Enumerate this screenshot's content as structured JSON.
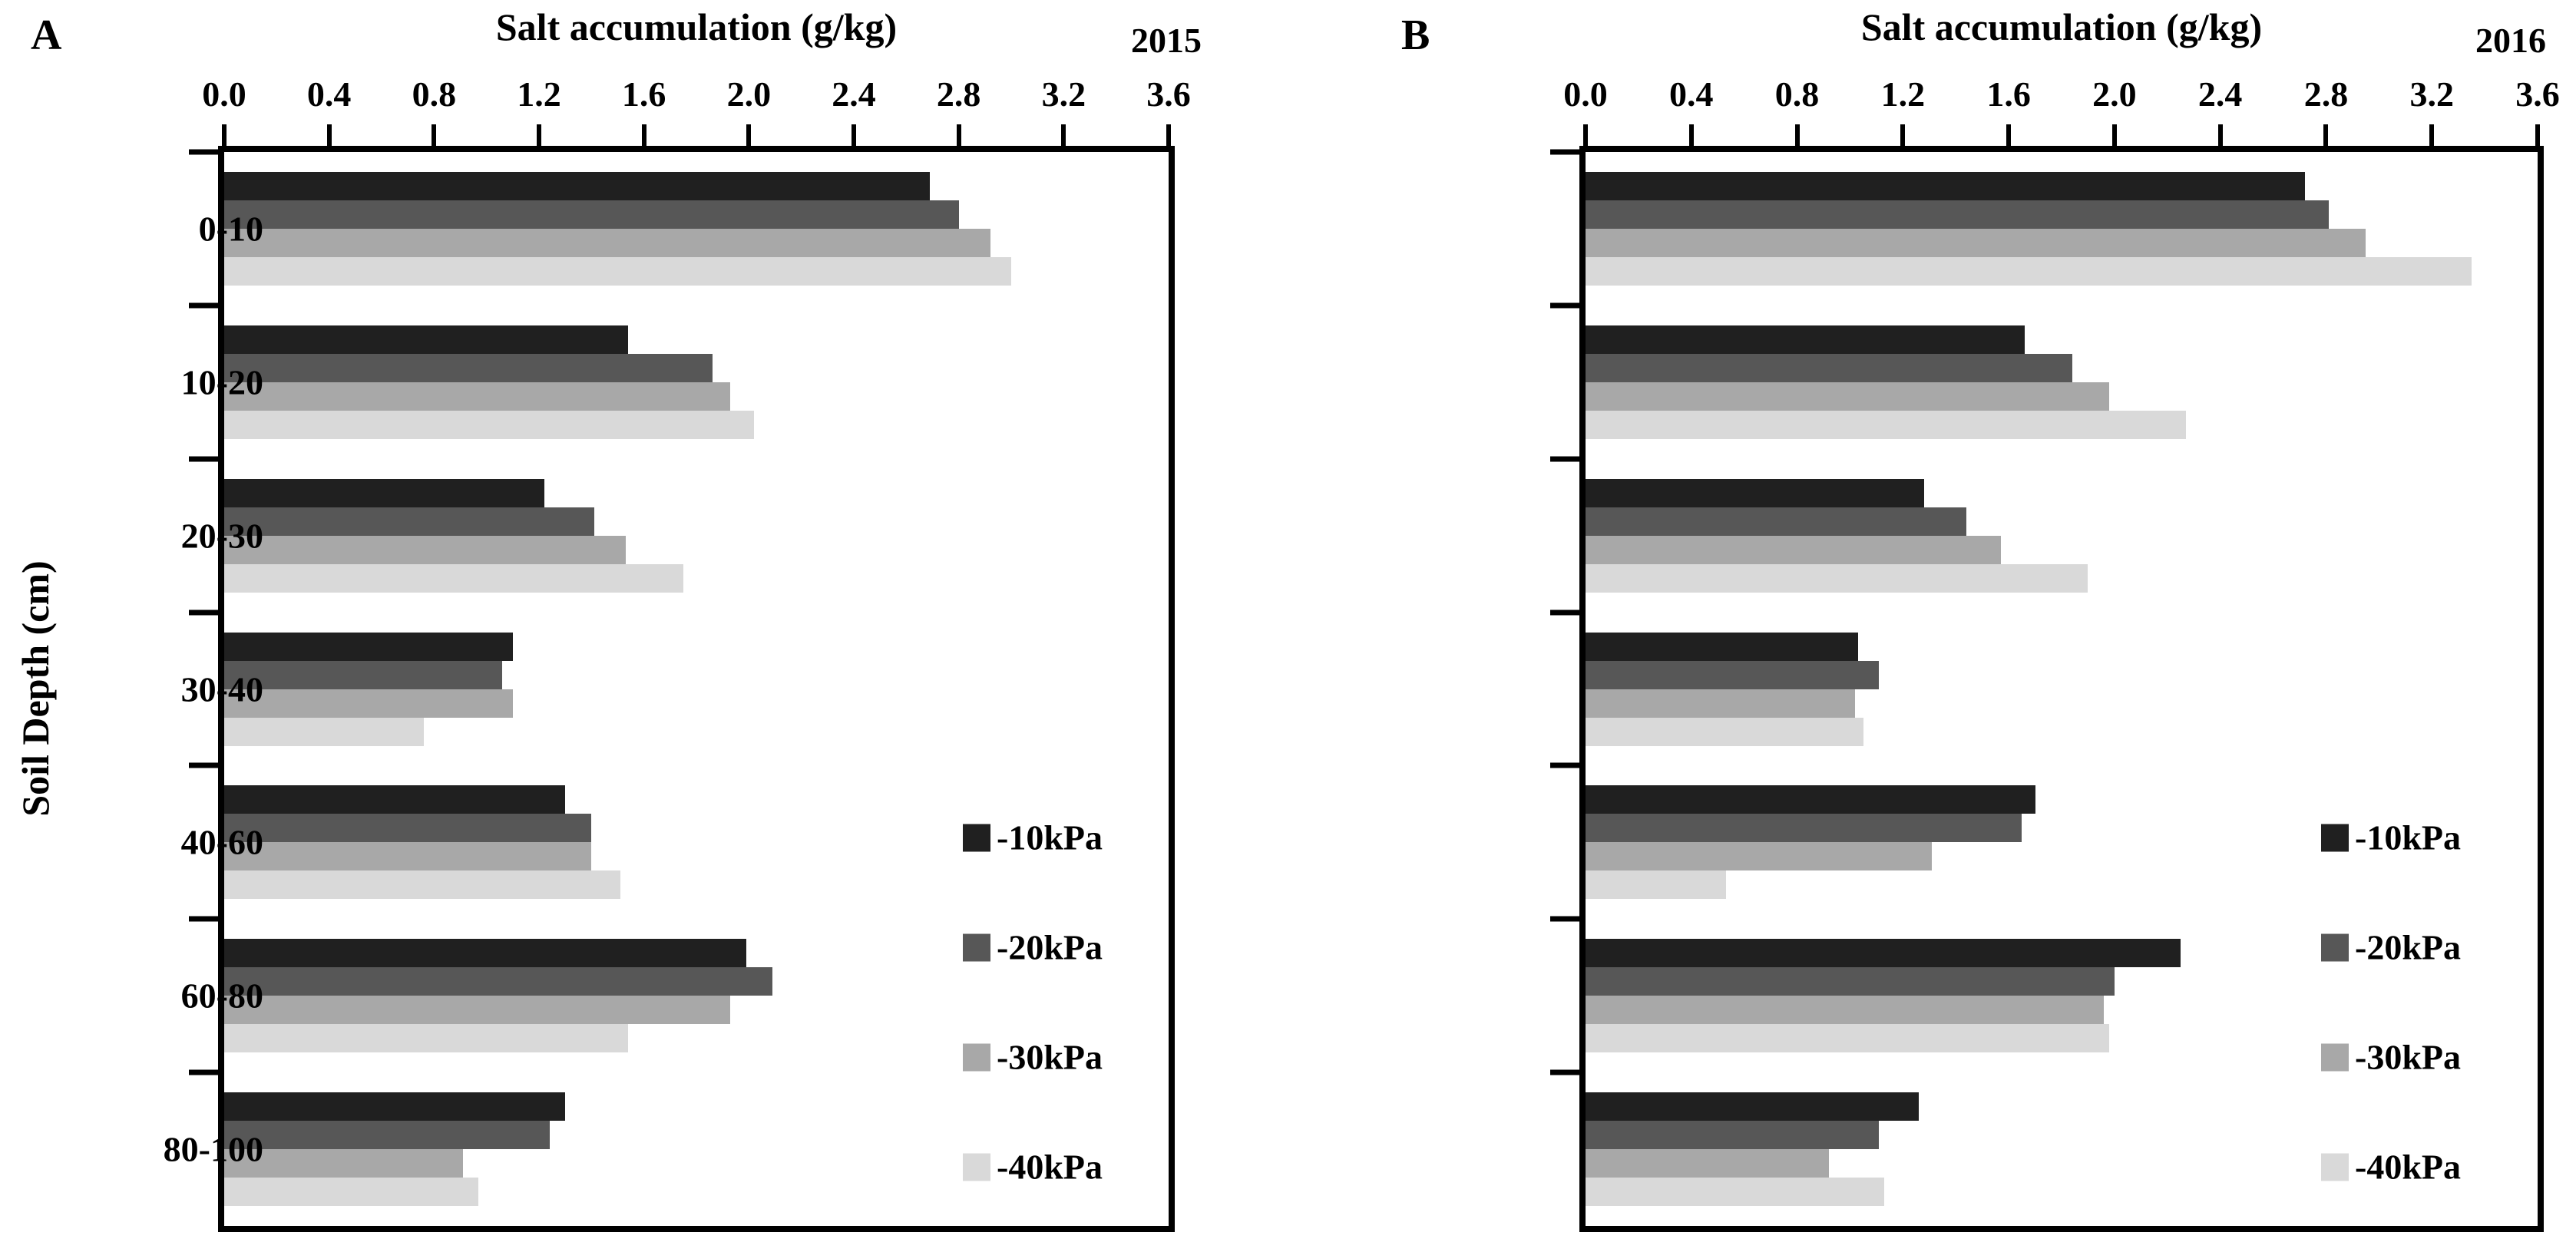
{
  "figure": {
    "xlabel": "Salt accumulation (g/kg)",
    "ylabel": "Soil Depth (cm)",
    "series_labels": [
      "-10kPa",
      "-20kPa",
      "-30kPa",
      "-40kPa"
    ],
    "series_colors": [
      "#202020",
      "#575757",
      "#a8a8a8",
      "#d9d9d9"
    ],
    "axis_color": "#000000"
  },
  "chart_data": [
    {
      "type": "bar",
      "orientation": "horizontal",
      "panel_label": "A",
      "year": "2015",
      "title": "Salt accumulation (g/kg)",
      "xlabel": "Salt accumulation (g/kg)",
      "ylabel": "Soil Depth (cm)",
      "xlim": [
        0.0,
        3.6
      ],
      "x_ticks": [
        "0.0",
        "0.4",
        "0.8",
        "1.2",
        "1.6",
        "2.0",
        "2.4",
        "2.8",
        "3.2",
        "3.6"
      ],
      "grid": false,
      "categories": [
        "0-10",
        "10-20",
        "20-30",
        "30-40",
        "40-60",
        "60-80",
        "80-100"
      ],
      "series": [
        {
          "name": "-10kPa",
          "color": "#202020",
          "values": [
            2.69,
            1.54,
            1.22,
            1.1,
            1.3,
            1.99,
            1.3
          ]
        },
        {
          "name": "-20kPa",
          "color": "#575757",
          "values": [
            2.8,
            1.86,
            1.41,
            1.06,
            1.4,
            2.09,
            1.24
          ]
        },
        {
          "name": "-30kPa",
          "color": "#a8a8a8",
          "values": [
            2.92,
            1.93,
            1.53,
            1.1,
            1.4,
            1.93,
            0.91
          ]
        },
        {
          "name": "-40kPa",
          "color": "#d9d9d9",
          "values": [
            3.0,
            2.02,
            1.75,
            0.76,
            1.51,
            1.54,
            0.97
          ]
        }
      ],
      "legend": {
        "position": "right-center",
        "items": [
          "-10kPa",
          "-20kPa",
          "-30kPa",
          "-40kPa"
        ]
      }
    },
    {
      "type": "bar",
      "orientation": "horizontal",
      "panel_label": "B",
      "year": "2016",
      "title": "Salt accumulation (g/kg)",
      "xlabel": "Salt accumulation (g/kg)",
      "ylabel": "",
      "xlim": [
        0.0,
        3.6
      ],
      "x_ticks": [
        "0.0",
        "0.4",
        "0.8",
        "1.2",
        "1.6",
        "2.0",
        "2.4",
        "2.8",
        "3.2",
        "3.6"
      ],
      "grid": false,
      "categories": [
        "0-10",
        "10-20",
        "20-30",
        "30-40",
        "40-60",
        "60-80",
        "80-100"
      ],
      "series": [
        {
          "name": "-10kPa",
          "color": "#202020",
          "values": [
            2.72,
            1.66,
            1.28,
            1.03,
            1.7,
            2.25,
            1.26
          ]
        },
        {
          "name": "-20kPa",
          "color": "#575757",
          "values": [
            2.81,
            1.84,
            1.44,
            1.11,
            1.65,
            2.0,
            1.11
          ]
        },
        {
          "name": "-30kPa",
          "color": "#a8a8a8",
          "values": [
            2.95,
            1.98,
            1.57,
            1.02,
            1.31,
            1.96,
            0.92
          ]
        },
        {
          "name": "-40kPa",
          "color": "#d9d9d9",
          "values": [
            3.35,
            2.27,
            1.9,
            1.05,
            0.53,
            1.98,
            1.13
          ]
        }
      ],
      "legend": {
        "position": "right-center",
        "items": [
          "-10kPa",
          "-20kPa",
          "-30kPa",
          "-40kPa"
        ]
      }
    }
  ]
}
